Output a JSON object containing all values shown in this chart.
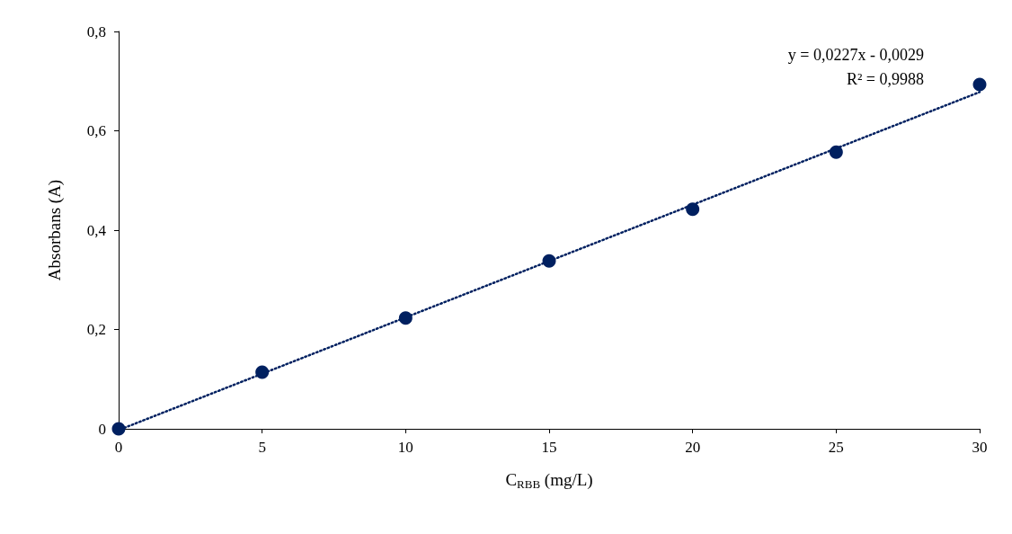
{
  "chart_data": {
    "type": "scatter",
    "xlabel": "C$_{RBB}$ (mg/L)",
    "ylabel": "Absorbans (A)",
    "x": [
      0,
      5,
      10,
      15,
      20,
      25,
      30
    ],
    "series": [
      {
        "color": "#002060",
        "values": [
          0,
          0.114,
          0.223,
          0.338,
          0.442,
          0.557,
          0.693
        ],
        "marker": "circle"
      },
      {
        "type": "line",
        "color": "#002060",
        "x": [
          0.2,
          30
        ],
        "values": [
          0.002,
          0.678
        ],
        "line_style": "dotted",
        "marker": "none"
      }
    ],
    "xlim": [
      0,
      30
    ],
    "xticks": [
      0,
      5,
      10,
      15,
      20,
      25,
      30
    ],
    "ylim": [
      0,
      0.8
    ],
    "yticks": [
      0,
      {
        "value": 0.2,
        "label": "0,2"
      },
      {
        "value": 0.4,
        "label": "0,4"
      },
      {
        "value": 0.6,
        "label": "0,6"
      },
      {
        "value": 0.8,
        "label": "0,8"
      }
    ],
    "annotations": [
      "y = 0,0227x - 0,0029",
      "R² = 0,9988"
    ],
    "grid": false
  }
}
